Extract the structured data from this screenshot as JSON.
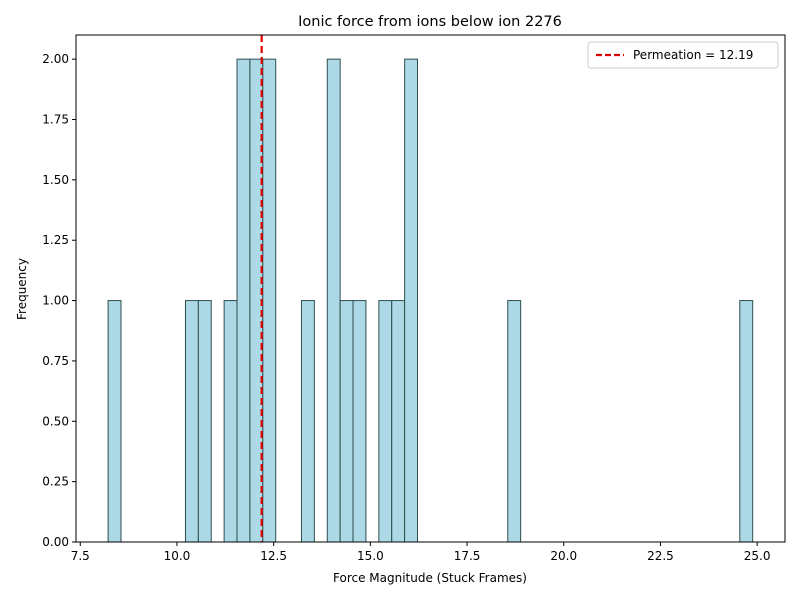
{
  "chart_data": {
    "type": "bar",
    "title": "Ionic force from ions below ion 2276",
    "xlabel": "Force Magnitude (Stuck Frames)",
    "ylabel": "Frequency",
    "xlim": [
      7.39,
      25.72
    ],
    "ylim": [
      0,
      2.1
    ],
    "xticks": [
      7.5,
      10.0,
      12.5,
      15.0,
      17.5,
      20.0,
      22.5,
      25.0
    ],
    "xtick_labels": [
      "7.5",
      "10.0",
      "12.5",
      "15.0",
      "17.5",
      "20.0",
      "22.5",
      "25.0"
    ],
    "yticks": [
      0,
      0.25,
      0.5,
      0.75,
      1.0,
      1.25,
      1.5,
      1.75,
      2.0
    ],
    "ytick_labels": [
      "0.00",
      "0.25",
      "0.50",
      "0.75",
      "1.00",
      "1.25",
      "1.50",
      "1.75",
      "2.00"
    ],
    "bin_start": 8.22,
    "bin_width": 0.3333,
    "bins": [
      {
        "index": 0,
        "count": 1
      },
      {
        "index": 6,
        "count": 1
      },
      {
        "index": 7,
        "count": 1
      },
      {
        "index": 9,
        "count": 1
      },
      {
        "index": 10,
        "count": 2
      },
      {
        "index": 11,
        "count": 2
      },
      {
        "index": 12,
        "count": 2
      },
      {
        "index": 15,
        "count": 1
      },
      {
        "index": 17,
        "count": 2
      },
      {
        "index": 18,
        "count": 1
      },
      {
        "index": 19,
        "count": 1
      },
      {
        "index": 21,
        "count": 1
      },
      {
        "index": 22,
        "count": 1
      },
      {
        "index": 23,
        "count": 2
      },
      {
        "index": 31,
        "count": 1
      },
      {
        "index": 49,
        "count": 1
      }
    ],
    "bar_color": "#add8e6",
    "bar_edge_color": "#2f4f4f",
    "reference_line": {
      "x": 12.19,
      "label": "Permeation = 12.19",
      "color": "#e00000",
      "style": "dashed"
    },
    "legend_position": "top-right",
    "grid": false
  }
}
